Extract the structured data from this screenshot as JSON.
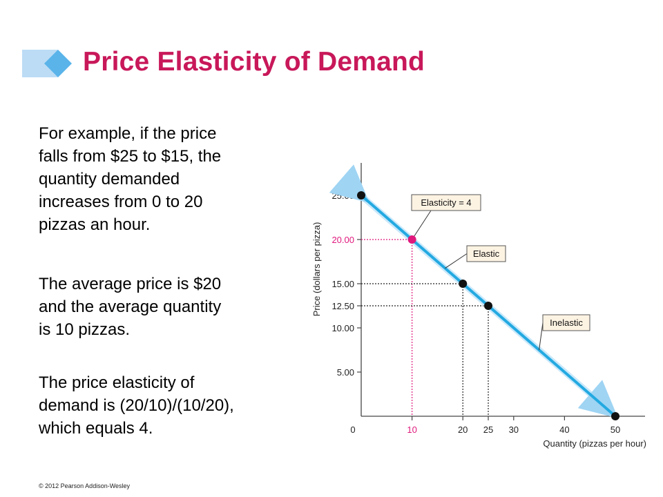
{
  "slide": {
    "title": "Price Elasticity of Demand",
    "paragraphs": [
      "For example,  if the price\nfalls from $25 to $15, the\nquantity demanded\nincreases from 0 to 20\npizzas an hour.",
      "The average price is $20\nand the average quantity\nis 10 pizzas.",
      "The price elasticity of\ndemand is (20/10)/(10/20),\nwhich equals 4."
    ],
    "copyright": "© 2012 Pearson Addison-Wesley"
  },
  "colors": {
    "title": "#c8185a",
    "demand_line": "#23a9e1",
    "highlight": "#e0187c",
    "callout_fill": "#fdf3e3",
    "deco": "#bcdcf5",
    "deco_diamond": "#5ab4ea"
  },
  "chart_data": {
    "type": "line",
    "xlabel": "Quantity (pizzas per hour)",
    "ylabel": "Price (dollars per pizza)",
    "xlim": [
      0,
      54
    ],
    "ylim": [
      0,
      28
    ],
    "x_ticks": [
      {
        "value": 0,
        "label": "0",
        "highlight": false
      },
      {
        "value": 10,
        "label": "10",
        "highlight": true
      },
      {
        "value": 20,
        "label": "20",
        "highlight": false
      },
      {
        "value": 25,
        "label": "25",
        "highlight": false
      },
      {
        "value": 30,
        "label": "30",
        "highlight": false
      },
      {
        "value": 40,
        "label": "40",
        "highlight": false
      },
      {
        "value": 50,
        "label": "50",
        "highlight": false
      }
    ],
    "y_ticks": [
      {
        "value": 5,
        "label": "5.00",
        "highlight": false
      },
      {
        "value": 10,
        "label": "10.00",
        "highlight": false
      },
      {
        "value": 12.5,
        "label": "12.50",
        "highlight": false
      },
      {
        "value": 15,
        "label": "15.00",
        "highlight": false
      },
      {
        "value": 20,
        "label": "20.00",
        "highlight": true
      },
      {
        "value": 25,
        "label": "25.00",
        "highlight": false
      }
    ],
    "series": [
      {
        "x": [
          0,
          50
        ],
        "y": [
          25,
          0
        ]
      }
    ],
    "points": [
      {
        "x": 0,
        "y": 25,
        "highlight": false,
        "guides": false
      },
      {
        "x": 10,
        "y": 20,
        "highlight": true,
        "guides": true
      },
      {
        "x": 20,
        "y": 15,
        "highlight": false,
        "guides": true
      },
      {
        "x": 25,
        "y": 12.5,
        "highlight": false,
        "guides": true
      },
      {
        "x": 50,
        "y": 0,
        "highlight": false,
        "guides": false
      }
    ],
    "annotations": [
      {
        "text": "Elasticity = 4",
        "target": {
          "x": 10,
          "y": 20
        }
      },
      {
        "text": "Elastic",
        "target": {
          "x": 16.5,
          "y": 16.75
        }
      },
      {
        "text": "Inelastic",
        "target": {
          "x": 35,
          "y": 7.5
        }
      }
    ]
  }
}
